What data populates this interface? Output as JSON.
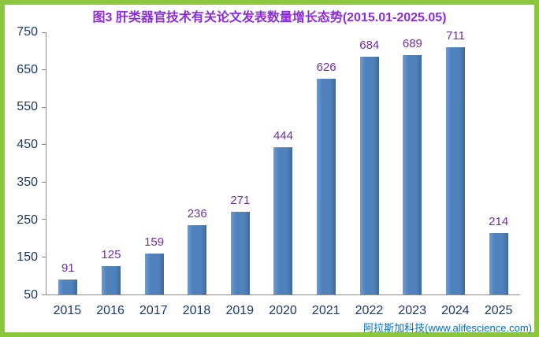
{
  "chart_data": {
    "type": "bar",
    "title": "图3 肝类器官技术有关论文发表数量增长态势(2015.01-2025.05)",
    "categories": [
      "2015",
      "2016",
      "2017",
      "2018",
      "2019",
      "2020",
      "2021",
      "2022",
      "2023",
      "2024",
      "2025"
    ],
    "values": [
      91,
      125,
      159,
      236,
      271,
      444,
      626,
      684,
      689,
      711,
      214
    ],
    "yticks": [
      50,
      150,
      250,
      350,
      450,
      550,
      650,
      750
    ],
    "ylim": [
      50,
      750
    ],
    "xlabel": "",
    "ylabel": "",
    "grid": false,
    "legend": "none",
    "value_labels_shown": true
  },
  "watermark": {
    "text": "阿拉斯加科技(www.alifescience.com)"
  },
  "colors": {
    "frame_border": "#8CC63F",
    "bar": "#4F81BD",
    "title_text": "#8D2BE0",
    "value_label_text": "#7030A0",
    "axis_text": "#1F3864",
    "axis_line": "#8C8C8C",
    "watermark_text": "#0070C0"
  }
}
